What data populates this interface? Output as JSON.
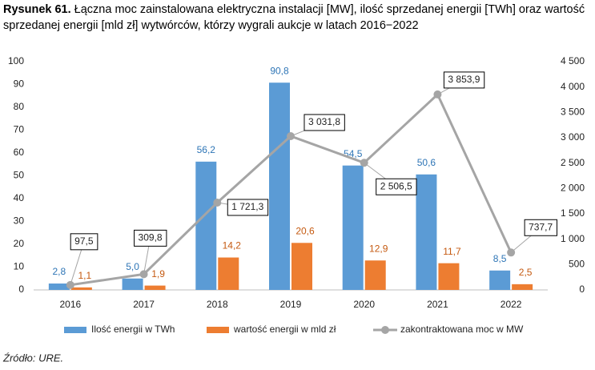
{
  "chart_data": {
    "type": "bar_line",
    "figure_label": "Rysunek 61.",
    "title": [
      "Łączna moc zainstalowana elektryczna instalacji [MW], ilość sprzedanej energii [TWh] oraz wartość",
      "sprzedanej energii [mld zł] wytwórców, którzy wygrali aukcje w latach 2016−2022"
    ],
    "categories": [
      "2016",
      "2017",
      "2018",
      "2019",
      "2020",
      "2021",
      "2022"
    ],
    "series": [
      {
        "name": "Ilość energii w TWh",
        "type": "bar",
        "color": "#5b9bd5",
        "label_color": "#2e75b6",
        "values": [
          2.8,
          5.0,
          56.2,
          90.8,
          54.5,
          50.6,
          8.5
        ],
        "value_labels": [
          "2,8",
          "5,0",
          "56,2",
          "90,8",
          "54,5",
          "50,6",
          "8,5"
        ]
      },
      {
        "name": "wartość energii w mld zł",
        "type": "bar",
        "color": "#ed7d31",
        "label_color": "#c55a11",
        "values": [
          1.1,
          1.9,
          14.2,
          20.6,
          12.9,
          11.7,
          2.5
        ],
        "value_labels": [
          "1,1",
          "1,9",
          "14,2",
          "20,6",
          "12,9",
          "11,7",
          "2,5"
        ]
      },
      {
        "name": "zakontraktowana moc w MW",
        "type": "line",
        "axis": "y2",
        "color": "#a5a5a5",
        "label_color": "#000000",
        "values": [
          97.5,
          309.8,
          1721.3,
          3031.8,
          2506.5,
          3853.9,
          737.7
        ],
        "value_labels": [
          "97,5",
          "309,8",
          "1 721,3",
          "3 031,8",
          "2 506,5",
          "3 853,9",
          "737,7"
        ]
      }
    ],
    "ylim": [
      0,
      100
    ],
    "yticks": [
      0,
      10,
      20,
      30,
      40,
      50,
      60,
      70,
      80,
      90,
      100
    ],
    "y2lim": [
      0,
      4500
    ],
    "y2ticks": [
      0,
      500,
      {
        "value": 1000,
        "label": "1 000"
      },
      {
        "value": 1500,
        "label": "1 500"
      },
      {
        "value": 2000,
        "label": "2 000"
      },
      {
        "value": 2500,
        "label": "2 500"
      },
      {
        "value": 3000,
        "label": "3 000"
      },
      {
        "value": 3500,
        "label": "3 500"
      },
      {
        "value": 4000,
        "label": "4 000"
      },
      {
        "value": 4500,
        "label": "4 500"
      }
    ],
    "grid": false,
    "legend": "bottom",
    "source": "Źródło: URE."
  }
}
